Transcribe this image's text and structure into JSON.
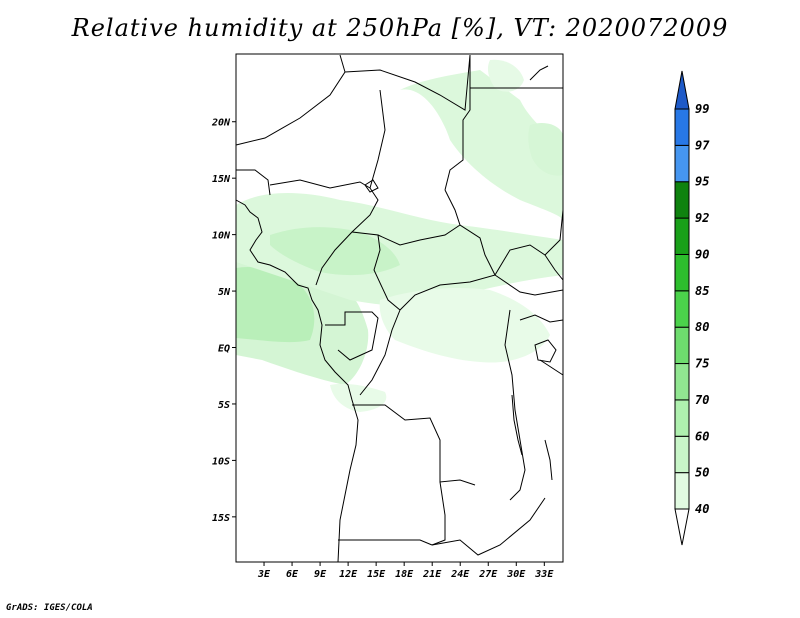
{
  "title": "Relative humidity at 250hPa [%], VT: 2020072009",
  "credit": "GrADS: IGES/COLA",
  "map": {
    "lon_range": [
      0,
      35
    ],
    "lat_range": [
      -19,
      26
    ],
    "lat_ticks": [
      {
        "value": 20,
        "label": "20N"
      },
      {
        "value": 15,
        "label": "15N"
      },
      {
        "value": 10,
        "label": "10N"
      },
      {
        "value": 5,
        "label": "5N"
      },
      {
        "value": 0,
        "label": "EQ"
      },
      {
        "value": -5,
        "label": "5S"
      },
      {
        "value": -10,
        "label": "10S"
      },
      {
        "value": -15,
        "label": "15S"
      }
    ],
    "lon_ticks": [
      {
        "value": 3,
        "label": "3E"
      },
      {
        "value": 6,
        "label": "6E"
      },
      {
        "value": 9,
        "label": "9E"
      },
      {
        "value": 12,
        "label": "12E"
      },
      {
        "value": 15,
        "label": "15E"
      },
      {
        "value": 18,
        "label": "18E"
      },
      {
        "value": 21,
        "label": "21E"
      },
      {
        "value": 24,
        "label": "24E"
      },
      {
        "value": 27,
        "label": "27E"
      },
      {
        "value": 30,
        "label": "30E"
      },
      {
        "value": 33,
        "label": "33E"
      }
    ]
  },
  "colorbar": {
    "levels": [
      "40",
      "50",
      "60",
      "70",
      "75",
      "80",
      "85",
      "90",
      "92",
      "95",
      "97",
      "99"
    ],
    "colors": [
      "#f0fff0",
      "#e1fae1",
      "#c8f5c8",
      "#aff0af",
      "#91e691",
      "#6edc6e",
      "#4bd24b",
      "#2dbe2d",
      "#19a019",
      "#0f820f",
      "#4696f0",
      "#2878e6",
      "#1e5ac8"
    ]
  },
  "chart_data": {
    "type": "heatmap",
    "title": "Relative humidity at 250hPa [%], VT: 2020072009",
    "variable": "Relative humidity",
    "level": "250hPa",
    "units": "%",
    "valid_time": "2020072009",
    "shaded_regions": [
      {
        "name": "gulf-of-guinea-humid-area",
        "rh_range": [
          40,
          70
        ]
      },
      {
        "name": "central-sahel-humid-band",
        "rh_range": [
          40,
          60
        ]
      },
      {
        "name": "eastern-sahel-humid-area",
        "rh_range": [
          40,
          60
        ]
      },
      {
        "name": "congo-basin-humid-area",
        "rh_range": [
          40,
          50
        ]
      },
      {
        "name": "northern-sahara-humid-patch",
        "rh_range": [
          40,
          60
        ]
      }
    ]
  }
}
